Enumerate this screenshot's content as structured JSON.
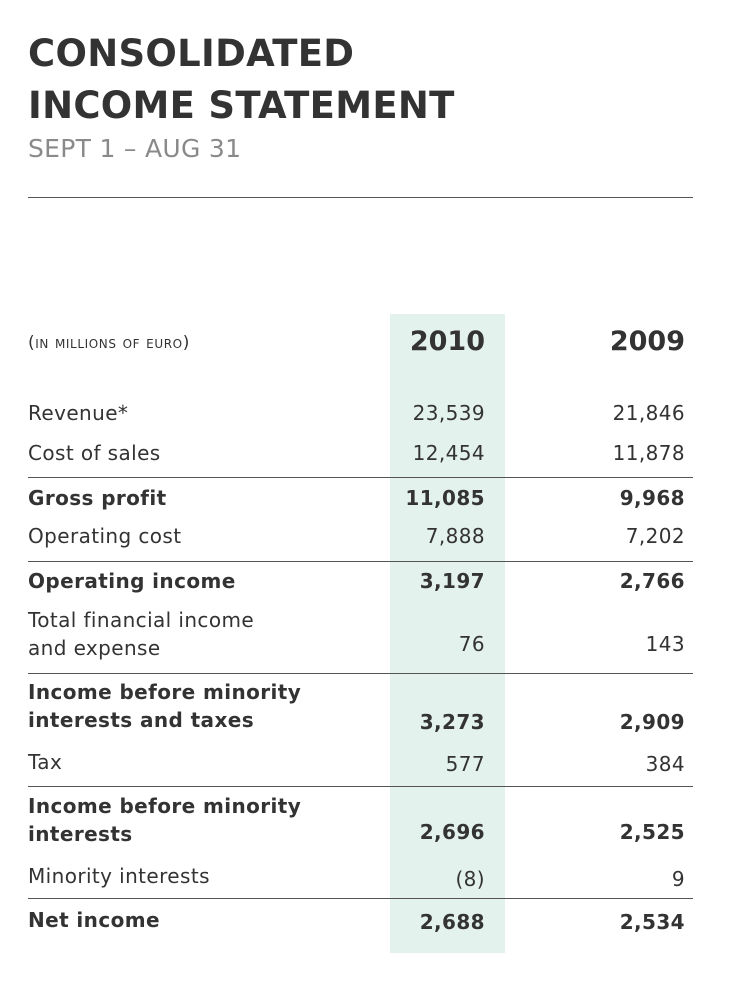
{
  "header": {
    "title_line1": "CONSOLIDATED",
    "title_line2": "INCOME STATEMENT",
    "subtitle": "SEPT 1 – AUG 31"
  },
  "table": {
    "units": "(in millions of euro)",
    "columns": [
      "2010",
      "2009"
    ],
    "highlight_color": "#e4f2ee",
    "rows": [
      {
        "label": "Revenue*",
        "v2010": "23,539",
        "v2009": "21,846"
      },
      {
        "label": "Cost of sales",
        "v2010": "12,454",
        "v2009": "11,878"
      },
      {
        "label": "Gross profit",
        "v2010": "11,085",
        "v2009": "9,968"
      },
      {
        "label": "Operating cost",
        "v2010": "7,888",
        "v2009": "7,202"
      },
      {
        "label": "Operating income",
        "v2010": "3,197",
        "v2009": "2,766"
      },
      {
        "label": "Total financial income\nand expense",
        "v2010": "76",
        "v2009": "143"
      },
      {
        "label": "Income before minority\ninterests and taxes",
        "v2010": "3,273",
        "v2009": "2,909"
      },
      {
        "label": "Tax",
        "v2010": "577",
        "v2009": "384"
      },
      {
        "label": "Income before minority\ninterests",
        "v2010": "2,696",
        "v2009": "2,525"
      },
      {
        "label": "Minority interests",
        "v2010": "(8)",
        "v2009": "9"
      },
      {
        "label": "Net income",
        "v2010": "2,688",
        "v2009": "2,534"
      }
    ]
  }
}
